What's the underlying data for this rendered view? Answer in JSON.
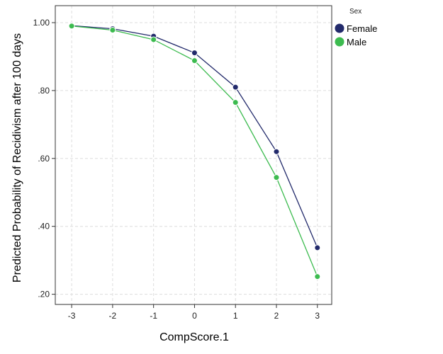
{
  "chart_data": {
    "type": "line",
    "title": "",
    "xlabel": "CompScore.1",
    "ylabel": "Predicted Probability of Recidivism after 100 days",
    "x": [
      -3,
      -2,
      -1,
      0,
      1,
      2,
      3
    ],
    "xticks": [
      "-3",
      "-2",
      "-1",
      "0",
      "1",
      "2",
      "3"
    ],
    "yticks": [
      0.2,
      0.4,
      0.6,
      0.8,
      1.0
    ],
    "ytick_labels": [
      ".20",
      ".40",
      ".60",
      ".80",
      "1.00"
    ],
    "xlim": [
      -3.4,
      3.35
    ],
    "ylim": [
      0.17,
      1.05
    ],
    "grid": true,
    "legend": {
      "title": "Sex",
      "position": "right-top"
    },
    "series": [
      {
        "name": "Female",
        "color": "#222a6b",
        "values": [
          0.991,
          0.982,
          0.96,
          0.911,
          0.81,
          0.62,
          0.337
        ]
      },
      {
        "name": "Male",
        "color": "#3cbb4f",
        "values": [
          0.99,
          0.978,
          0.95,
          0.888,
          0.765,
          0.544,
          0.252
        ]
      }
    ]
  }
}
